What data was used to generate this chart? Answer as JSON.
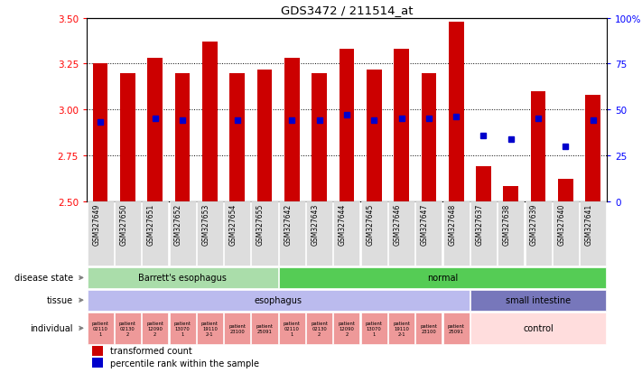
{
  "title": "GDS3472 / 211514_at",
  "samples": [
    "GSM327649",
    "GSM327650",
    "GSM327651",
    "GSM327652",
    "GSM327653",
    "GSM327654",
    "GSM327655",
    "GSM327642",
    "GSM327643",
    "GSM327644",
    "GSM327645",
    "GSM327646",
    "GSM327647",
    "GSM327648",
    "GSM327637",
    "GSM327638",
    "GSM327639",
    "GSM327640",
    "GSM327641"
  ],
  "bar_heights": [
    3.25,
    3.2,
    3.28,
    3.2,
    3.37,
    3.2,
    3.22,
    3.28,
    3.2,
    3.33,
    3.22,
    3.33,
    3.2,
    3.48,
    2.69,
    2.58,
    3.1,
    2.62,
    3.08
  ],
  "blue_y": [
    2.93,
    null,
    2.95,
    2.94,
    null,
    2.94,
    null,
    2.94,
    2.94,
    2.97,
    2.94,
    2.95,
    2.95,
    2.96,
    2.86,
    2.84,
    2.95,
    2.8,
    2.94
  ],
  "baseline": 2.5,
  "ylim_left": [
    2.5,
    3.5
  ],
  "ylim_right": [
    0,
    100
  ],
  "yticks_left": [
    2.5,
    2.75,
    3.0,
    3.25,
    3.5
  ],
  "yticks_right": [
    0,
    25,
    50,
    75,
    100
  ],
  "bar_color": "#cc0000",
  "blue_color": "#0000cc",
  "disease_state_groups": [
    {
      "label": "Barrett's esophagus",
      "start": 0,
      "end": 7,
      "color": "#aaddaa"
    },
    {
      "label": "normal",
      "start": 7,
      "end": 19,
      "color": "#55cc55"
    }
  ],
  "tissue_groups": [
    {
      "label": "esophagus",
      "start": 0,
      "end": 14,
      "color": "#bbbbee"
    },
    {
      "label": "small intestine",
      "start": 14,
      "end": 19,
      "color": "#7777bb"
    }
  ],
  "patient_labels_esoph": [
    "patient\n02110\n1",
    "patient\n02130\n2",
    "patient\n12090\n2",
    "patient\n13070\n1",
    "patient\n19110\n2-1",
    "patient\n23100",
    "patient\n25091",
    "patient\n02110\n1",
    "patient\n02130\n2",
    "patient\n12090\n2",
    "patient\n13070\n1",
    "patient\n19110\n2-1",
    "patient\n23100",
    "patient\n25091"
  ],
  "esophagus_patient_color": "#ee9999",
  "control_color": "#ffdddd",
  "control_label": "control",
  "legend_items": [
    {
      "color": "#cc0000",
      "label": "transformed count"
    },
    {
      "color": "#0000cc",
      "label": "percentile rank within the sample"
    }
  ],
  "bar_width": 0.55,
  "label_fontsize": 7,
  "sample_fontsize": 5.5,
  "tick_fontsize": 7.5
}
